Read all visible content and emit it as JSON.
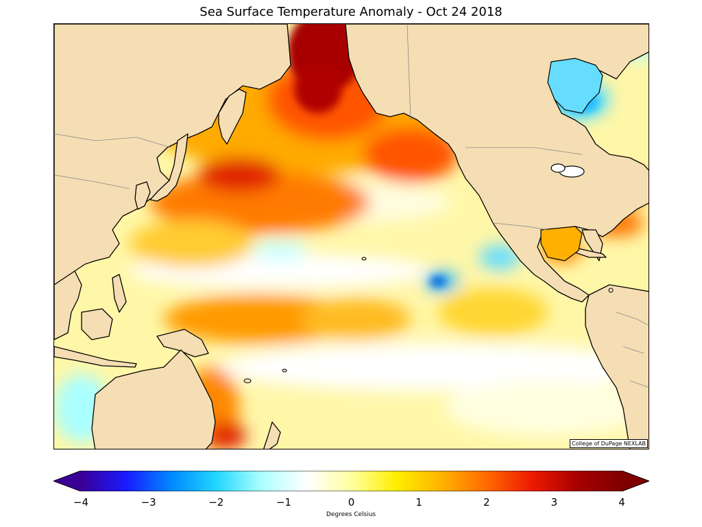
{
  "title": "Sea Surface Temperature Anomaly - Oct 24 2018",
  "credit": "College of DuPage NEXLAB",
  "colorbar": {
    "label": "Degrees Celsius",
    "min": -4,
    "max": 4,
    "ticks": [
      "−4",
      "−3",
      "−2",
      "−1",
      "0",
      "1",
      "2",
      "3",
      "4"
    ]
  },
  "colors": {
    "land": "#f5deb3",
    "ocean_neutral": "#ffffff",
    "warm_light": "#ffee44",
    "warm_mid": "#ffaa00",
    "warm_strong": "#ff5500",
    "warm_extreme": "#b00000",
    "cool_light": "#aaffff",
    "cool_mid": "#33ccff",
    "cool_strong": "#0077ee",
    "coast": "#000000",
    "borders": "#888888"
  },
  "colorbar_stops": [
    "#3a0096",
    "#1a1aff",
    "#0088ff",
    "#22d6ff",
    "#aaffff",
    "#ffffff",
    "#ffffa0",
    "#ffee00",
    "#ffb300",
    "#ff6a00",
    "#ee1a00",
    "#a80000",
    "#800000"
  ]
}
